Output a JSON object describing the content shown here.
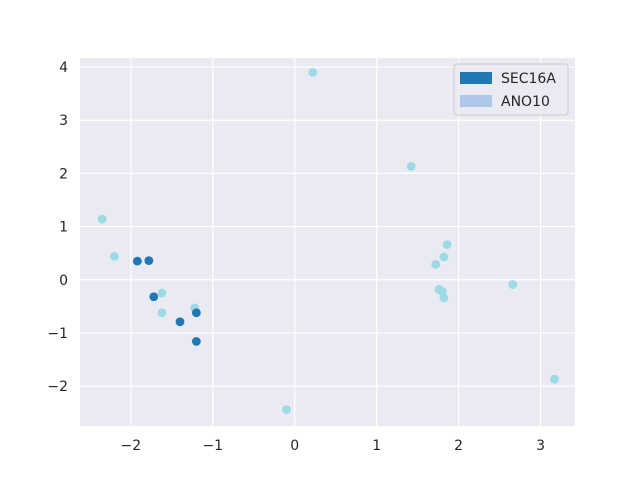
{
  "chart_data": {
    "type": "scatter",
    "xlim": [
      -2.62,
      3.42
    ],
    "ylim": [
      -2.75,
      4.17
    ],
    "x_ticks": [
      -2,
      -1,
      0,
      1,
      2,
      3
    ],
    "y_ticks": [
      -2,
      -1,
      0,
      1,
      2,
      3,
      4
    ],
    "x_tick_labels": [
      "−2",
      "−1",
      "0",
      "1",
      "2",
      "3"
    ],
    "y_tick_labels": [
      "−2",
      "−1",
      "0",
      "1",
      "2",
      "3",
      "4"
    ],
    "grid": true,
    "legend_position": "top-right",
    "series": [
      {
        "name": "ANO10",
        "legend_color": "#aec7e8",
        "marker_color": "#9edae5",
        "points": [
          {
            "x": 0.22,
            "y": 3.9
          },
          {
            "x": 1.42,
            "y": 2.13
          },
          {
            "x": -2.35,
            "y": 1.14
          },
          {
            "x": 1.86,
            "y": 0.66
          },
          {
            "x": -2.2,
            "y": 0.44
          },
          {
            "x": 1.82,
            "y": 0.43
          },
          {
            "x": 1.72,
            "y": 0.29
          },
          {
            "x": 1.76,
            "y": -0.18
          },
          {
            "x": 1.8,
            "y": -0.22
          },
          {
            "x": 1.82,
            "y": -0.34
          },
          {
            "x": 2.66,
            "y": -0.09
          },
          {
            "x": -1.62,
            "y": -0.25
          },
          {
            "x": -1.22,
            "y": -0.53
          },
          {
            "x": -1.62,
            "y": -0.62
          },
          {
            "x": 3.17,
            "y": -1.87
          },
          {
            "x": -0.1,
            "y": -2.44
          }
        ]
      },
      {
        "name": "SEC16A",
        "legend_color": "#1f77b4",
        "marker_color": "#1f77b4",
        "points": [
          {
            "x": -1.92,
            "y": 0.35
          },
          {
            "x": -1.78,
            "y": 0.36
          },
          {
            "x": -1.72,
            "y": -0.32
          },
          {
            "x": -1.4,
            "y": -0.79
          },
          {
            "x": -1.2,
            "y": -0.62
          },
          {
            "x": -1.2,
            "y": -1.16
          }
        ]
      }
    ],
    "legend": [
      {
        "label": "SEC16A",
        "color": "#1f77b4"
      },
      {
        "label": "ANO10",
        "color": "#aec7e8"
      }
    ]
  }
}
